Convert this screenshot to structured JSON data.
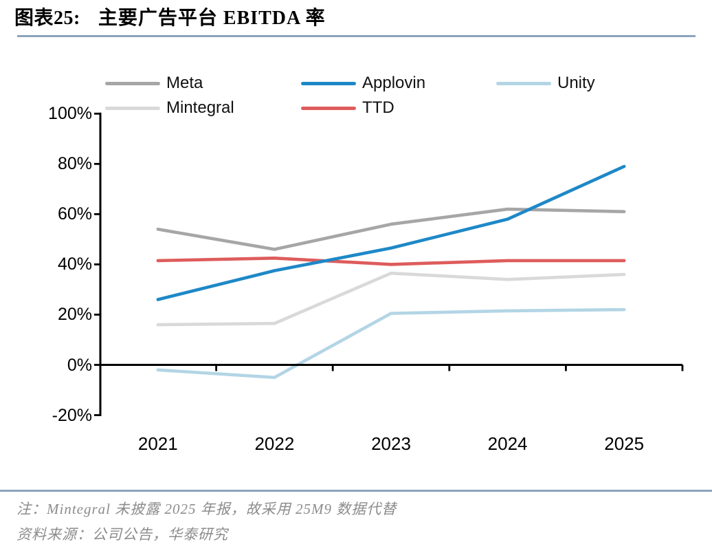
{
  "header": {
    "figure_label": "图表25:",
    "title": "主要广告平台 EBITDA 率"
  },
  "colors": {
    "meta": "#a6a6a6",
    "applovin": "#1e88c7",
    "unity": "#b3d5e5",
    "mintegral": "#d9d9d9",
    "ttd": "#de5c5c",
    "axis": "#000000",
    "separator": "#8ba3bd",
    "note_text": "#8c8c8c"
  },
  "legend": {
    "items": [
      {
        "label": "Meta",
        "series": "meta",
        "row": 0,
        "col": 0
      },
      {
        "label": "Applovin",
        "series": "applovin",
        "row": 0,
        "col": 1
      },
      {
        "label": "Unity",
        "series": "unity",
        "row": 0,
        "col": 2
      },
      {
        "label": "Mintegral",
        "series": "mintegral",
        "row": 1,
        "col": 0
      },
      {
        "label": "TTD",
        "series": "ttd",
        "row": 1,
        "col": 1
      }
    ]
  },
  "chart_data": {
    "type": "line",
    "title": "主要广告平台 EBITDA 率",
    "categories": [
      "2021",
      "2022",
      "2023",
      "2024",
      "2025"
    ],
    "series": [
      {
        "name": "Meta",
        "color_key": "meta",
        "values": [
          54,
          46,
          56,
          62,
          61
        ]
      },
      {
        "name": "Applovin",
        "color_key": "applovin",
        "values": [
          26,
          37.5,
          46.5,
          58,
          79
        ]
      },
      {
        "name": "Unity",
        "color_key": "unity",
        "values": [
          -2,
          -5,
          20.5,
          21.5,
          22
        ]
      },
      {
        "name": "Mintegral",
        "color_key": "mintegral",
        "values": [
          16,
          16.5,
          36.5,
          34,
          36
        ]
      },
      {
        "name": "TTD",
        "color_key": "ttd",
        "values": [
          41.5,
          42.5,
          40,
          41.5,
          41.5
        ]
      }
    ],
    "unit": "%",
    "y_ticks": [
      100,
      80,
      60,
      40,
      20,
      0,
      -20
    ],
    "y_tick_labels": [
      "100%",
      "80%",
      "60%",
      "40%",
      "20%",
      "0%",
      "-20%"
    ],
    "ylim": [
      -20,
      100
    ],
    "xlabel": "",
    "ylabel": "",
    "grid": false,
    "legend_position": "top"
  },
  "notes": {
    "line1": "注：Mintegral 未披露 2025 年报，故采用 25M9 数据代替",
    "line2": "资料来源：公司公告，华泰研究"
  }
}
